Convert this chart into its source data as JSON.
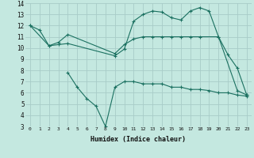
{
  "xlabel": "Humidex (Indice chaleur)",
  "bg_color": "#c4e8e0",
  "grid_color": "#a8ccc8",
  "line_color": "#1a7060",
  "xlim": [
    -0.5,
    23.5
  ],
  "ylim": [
    3,
    14
  ],
  "xticks": [
    0,
    1,
    2,
    3,
    4,
    5,
    6,
    7,
    8,
    9,
    10,
    11,
    12,
    13,
    14,
    15,
    16,
    17,
    18,
    19,
    20,
    21,
    22,
    23
  ],
  "yticks": [
    3,
    4,
    5,
    6,
    7,
    8,
    9,
    10,
    11,
    12,
    13,
    14
  ],
  "line1_x": [
    0,
    1,
    2,
    3,
    4,
    9,
    10,
    11,
    12,
    13,
    14,
    15,
    16,
    17,
    18,
    19,
    20,
    21,
    22,
    23
  ],
  "line1_y": [
    12.0,
    11.6,
    10.2,
    10.3,
    10.4,
    9.3,
    9.9,
    12.4,
    13.0,
    13.3,
    13.2,
    12.7,
    12.5,
    13.3,
    13.6,
    13.3,
    11.0,
    9.4,
    8.2,
    5.8
  ],
  "line2_x": [
    0,
    2,
    3,
    4,
    9,
    10,
    11,
    12,
    13,
    14,
    15,
    16,
    17,
    18,
    20,
    22,
    23
  ],
  "line2_y": [
    12.0,
    10.2,
    10.5,
    11.2,
    9.5,
    10.3,
    10.8,
    11.0,
    11.0,
    11.0,
    11.0,
    11.0,
    11.0,
    11.0,
    11.0,
    6.2,
    5.8
  ],
  "line3_x": [
    4,
    5,
    6,
    7,
    8,
    9,
    10,
    11,
    12,
    13,
    14,
    15,
    16,
    17,
    18,
    19,
    20,
    21,
    22,
    23
  ],
  "line3_y": [
    7.8,
    6.5,
    5.5,
    4.8,
    3.0,
    6.5,
    7.0,
    7.0,
    6.8,
    6.8,
    6.8,
    6.5,
    6.5,
    6.3,
    6.3,
    6.2,
    6.0,
    6.0,
    5.8,
    5.7
  ]
}
